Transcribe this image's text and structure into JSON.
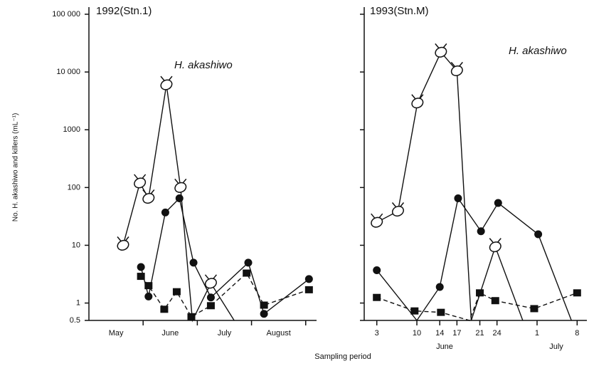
{
  "xlabel": "Sampling period",
  "ylabel": "No. H. akashiwo and killers (mL⁻¹)",
  "chart_data": [
    {
      "type": "line",
      "title": "1992(Stn.1)",
      "annotation": "H. akashiwo",
      "log_scale": true,
      "ylim": [
        0.5,
        100000
      ],
      "yticks": [
        {
          "value": 100000,
          "label": "100 000"
        },
        {
          "value": 10000,
          "label": "10 000"
        },
        1000,
        100,
        10,
        1,
        0.5
      ],
      "ytick_labels": true,
      "xlim": [
        0,
        4.2
      ],
      "xticks": [
        1,
        2,
        3,
        4
      ],
      "xtick_labels": false,
      "categories": [
        "May",
        "June",
        "July",
        "August"
      ],
      "series": [
        {
          "marker": "ring",
          "dashed": false,
          "color": "#111111",
          "x": [
            0.63,
            0.94,
            1.1,
            1.43,
            1.69,
            1.91,
            2.25,
            2.68
          ],
          "values": [
            10,
            120,
            65,
            6000,
            100,
            0.5,
            2.2,
            0.5
          ]
        },
        {
          "marker": "circle",
          "dashed": false,
          "color": "#111111",
          "x": [
            0.96,
            1.1,
            1.41,
            1.67,
            1.93,
            2.25,
            2.94,
            3.23,
            4.06
          ],
          "values": [
            4.2,
            1.3,
            37,
            65,
            5,
            1.25,
            5,
            0.65,
            2.6
          ]
        },
        {
          "marker": "square",
          "dashed": true,
          "color": "#111111",
          "x": [
            0.96,
            1.1,
            1.39,
            1.62,
            1.89,
            2.25,
            2.91,
            3.23,
            4.06
          ],
          "values": [
            2.9,
            2.0,
            0.78,
            1.57,
            0.58,
            0.9,
            3.3,
            0.92,
            1.7
          ]
        }
      ]
    },
    {
      "type": "line",
      "title": "1993(Stn.M)",
      "annotation": "H. akashiwo",
      "log_scale": true,
      "ylim": [
        0.5,
        100000
      ],
      "yticks": [
        100000,
        10000,
        1000,
        100,
        10,
        1,
        0.5
      ],
      "ytick_labels": false,
      "xlim": [
        0.8,
        39.7
      ],
      "xticks": [
        3,
        10,
        14,
        17,
        21,
        24,
        {
          "value": 31,
          "label": "1"
        },
        {
          "value": 38,
          "label": "8"
        }
      ],
      "xtick_labels": true,
      "categories": [
        "June",
        "July"
      ],
      "series": [
        {
          "marker": "ring",
          "dashed": false,
          "color": "#111111",
          "x": [
            3,
            6.7,
            10.1,
            14.2,
            17,
            19.5,
            23.7,
            28.5
          ],
          "values": [
            25,
            39,
            2900,
            22000,
            10500,
            0.5,
            9.4,
            0.5
          ]
        },
        {
          "marker": "circle",
          "dashed": false,
          "color": "#111111",
          "x": [
            3,
            10,
            14,
            17.2,
            21.2,
            24.2,
            31.2,
            37
          ],
          "values": [
            3.7,
            0.5,
            1.9,
            65,
            17.5,
            54,
            15.5,
            0.5
          ]
        },
        {
          "marker": "square",
          "dashed": true,
          "color": "#111111",
          "x": [
            3,
            9.6,
            14.2,
            19.2,
            21,
            23.7,
            30.5,
            38
          ],
          "values": [
            1.25,
            0.73,
            0.69,
            0.5,
            1.5,
            1.1,
            0.8,
            1.5
          ]
        }
      ]
    }
  ]
}
